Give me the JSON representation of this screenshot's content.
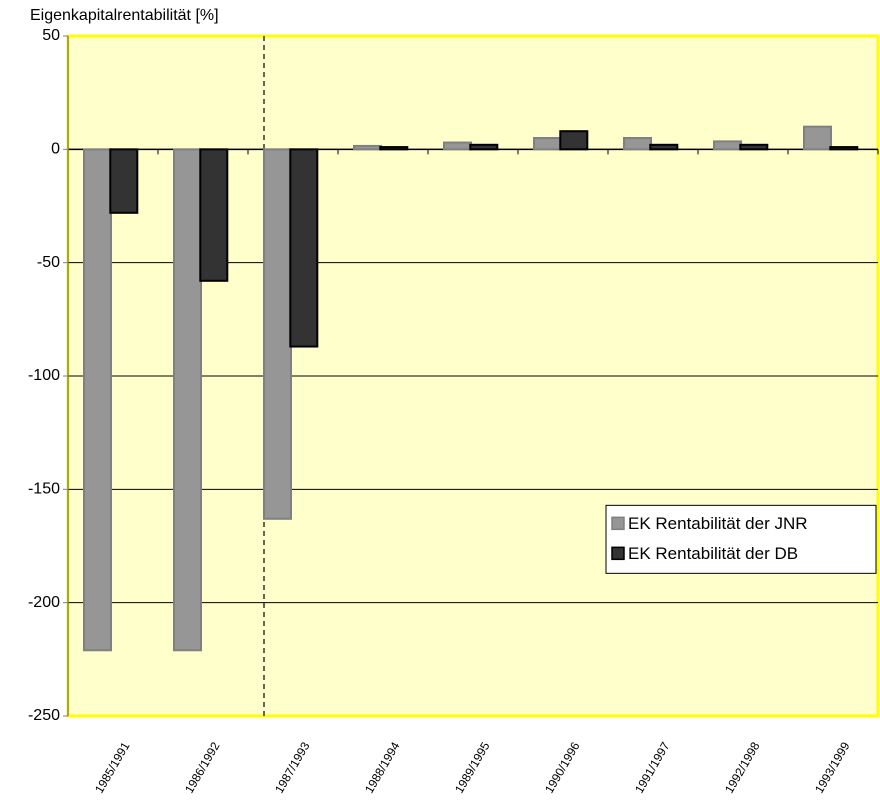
{
  "chart_data": {
    "type": "bar",
    "y_label": "Eigenkapitalrentabilität [%]",
    "categories": [
      "1985/1991",
      "1986/1992",
      "1987/1993",
      "1988/1994",
      "1989/1995",
      "1990/1996",
      "1991/1997",
      "1992/1998",
      "1993/1999"
    ],
    "series": [
      {
        "name": "EK Rentabilität der JNR",
        "color": "#969696",
        "values": [
          -221,
          -221,
          -163,
          1.5,
          3,
          5,
          5,
          3.5,
          10
        ]
      },
      {
        "name": "EK Rentabilität der DB",
        "color": "#333333",
        "values": [
          -28,
          -58,
          -87,
          1,
          2,
          8,
          2,
          2,
          1
        ]
      }
    ],
    "ylim": [
      -250,
      50
    ],
    "yticks": [
      -250,
      -200,
      -150,
      -100,
      -50,
      0,
      50
    ],
    "grid": true,
    "legend": "lower right"
  }
}
